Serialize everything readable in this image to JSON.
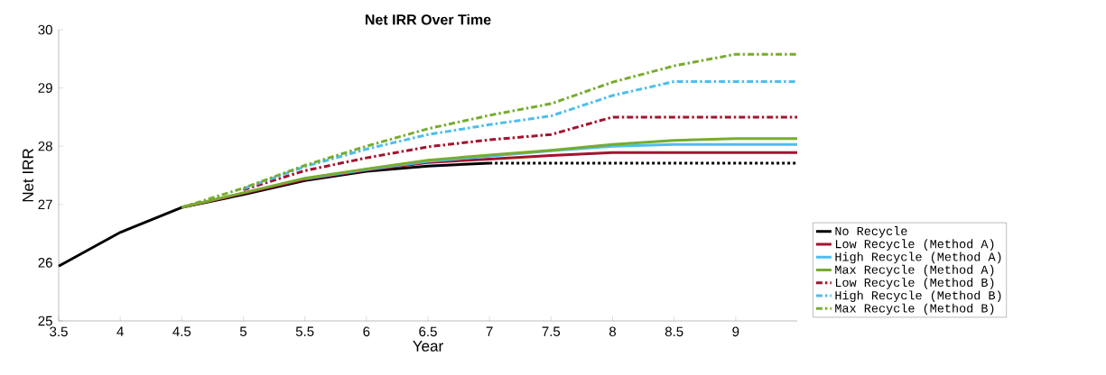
{
  "chart_data": {
    "type": "line",
    "title": "Net IRR Over Time",
    "xlabel": "Year",
    "ylabel": "Net IRR",
    "xlim": [
      3.5,
      9.5
    ],
    "ylim": [
      25,
      30
    ],
    "xticks": [
      3.5,
      4,
      4.5,
      5,
      5.5,
      6,
      6.5,
      7,
      7.5,
      8,
      8.5,
      9
    ],
    "yticks": [
      25,
      26,
      27,
      28,
      29,
      30
    ],
    "grid": false,
    "legend": "right",
    "marker": "none",
    "series": [
      {
        "name": "No Recycle",
        "color": "#000000",
        "line_style": "solid",
        "x": [
          3.5,
          4,
          4.5,
          5,
          5.5,
          6,
          6.5,
          7
        ],
        "values": [
          25.94,
          26.52,
          26.95,
          27.17,
          27.41,
          27.57,
          27.66,
          27.71
        ]
      },
      {
        "color": "#000000",
        "line_style": "dotted",
        "x": [
          7,
          9.5
        ],
        "values": [
          27.71,
          27.71
        ]
      },
      {
        "name": "Low Recycle (Method A)",
        "color": "#a2142f",
        "line_style": "solid",
        "x": [
          4.5,
          5,
          5.5,
          6,
          6.5,
          7,
          7.5,
          8,
          8.5,
          9,
          9.5
        ],
        "values": [
          26.95,
          27.19,
          27.43,
          27.59,
          27.72,
          27.78,
          27.84,
          27.89,
          27.89,
          27.89,
          27.89
        ]
      },
      {
        "name": "High Recycle (Method A)",
        "color": "#4dbeee",
        "line_style": "solid",
        "x": [
          5.5,
          6,
          6.5,
          7,
          7.5,
          8,
          8.5,
          9,
          9.5
        ],
        "values": [
          27.44,
          27.6,
          27.74,
          27.83,
          27.92,
          28.0,
          28.03,
          28.03,
          28.03
        ]
      },
      {
        "name": "Max Recycle (Method A)",
        "color": "#77ac30",
        "line_style": "solid",
        "x": [
          4.5,
          5,
          5.5,
          6,
          6.5,
          7,
          7.5,
          8,
          8.5,
          9,
          9.5
        ],
        "values": [
          26.95,
          27.2,
          27.45,
          27.61,
          27.76,
          27.85,
          27.93,
          28.03,
          28.1,
          28.13,
          28.13
        ]
      },
      {
        "name": "Low Recycle (Method B)",
        "color": "#a2142f",
        "line_style": "dashed",
        "x": [
          5,
          5.5,
          6,
          6.5,
          7,
          7.5,
          8,
          8.5,
          9,
          9.5
        ],
        "values": [
          27.25,
          27.58,
          27.8,
          27.99,
          28.11,
          28.2,
          28.5,
          28.5,
          28.5,
          28.5
        ]
      },
      {
        "name": "High Recycle (Method B)",
        "color": "#4dbeee",
        "line_style": "dashed",
        "x": [
          5,
          5.5,
          6,
          6.5,
          7,
          7.5,
          8,
          8.5,
          9,
          9.5
        ],
        "values": [
          27.27,
          27.65,
          27.95,
          28.2,
          28.37,
          28.52,
          28.87,
          29.11,
          29.11,
          29.11
        ]
      },
      {
        "name": "Max Recycle (Method B)",
        "color": "#77ac30",
        "line_style": "dashed",
        "x": [
          4.5,
          5,
          5.5,
          6,
          6.5,
          7,
          7.5,
          8,
          8.5,
          9,
          9.5
        ],
        "values": [
          26.95,
          27.28,
          27.67,
          28.0,
          28.3,
          28.53,
          28.73,
          29.1,
          29.38,
          29.58,
          29.58
        ]
      }
    ]
  }
}
